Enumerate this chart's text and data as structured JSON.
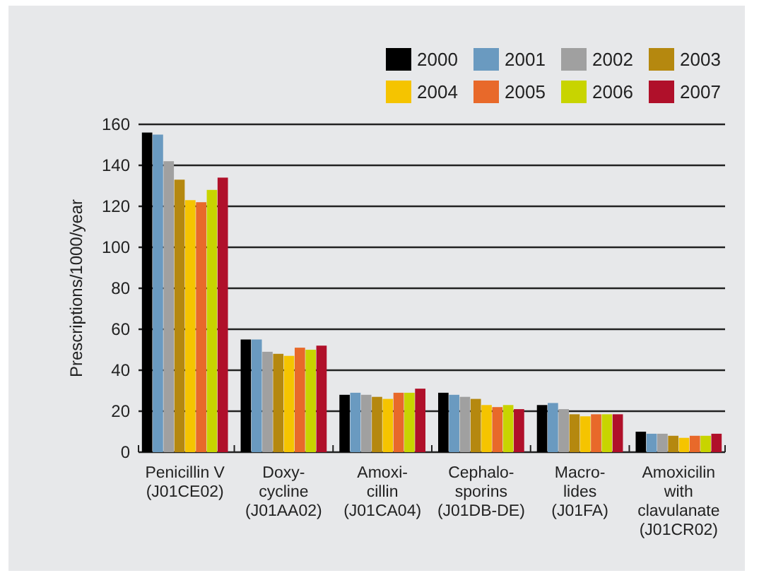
{
  "chart_data": {
    "type": "bar",
    "ylabel": "Prescriptions/1000/year",
    "categories": [
      "Penicillin V\n(J01CE02)",
      "Doxy-\ncycline\n(J01AA02)",
      "Amoxi-\ncillin\n(J01CA04)",
      "Cephalo-\nsporins\n(J01DB-DE)",
      "Macro-\nlides\n(J01FA)",
      "Amoxicilin\nwith\nclavulanate\n(J01CR02)"
    ],
    "series": [
      {
        "name": "2000",
        "color": "#000000",
        "values": [
          156,
          55,
          28,
          29,
          23,
          10
        ]
      },
      {
        "name": "2001",
        "color": "#6a9ac0",
        "values": [
          155,
          55,
          29,
          28,
          24,
          9
        ]
      },
      {
        "name": "2002",
        "color": "#a0a0a0",
        "values": [
          142,
          49,
          28,
          27,
          21,
          9
        ]
      },
      {
        "name": "2003",
        "color": "#b5880f",
        "values": [
          133,
          48,
          27,
          26,
          18.5,
          8
        ]
      },
      {
        "name": "2004",
        "color": "#f5c400",
        "values": [
          123,
          47,
          26,
          23,
          17.5,
          7
        ]
      },
      {
        "name": "2005",
        "color": "#e8692a",
        "values": [
          122,
          51,
          29,
          22,
          18.5,
          8
        ]
      },
      {
        "name": "2006",
        "color": "#c8d400",
        "values": [
          128,
          50,
          29,
          23,
          18.5,
          8
        ]
      },
      {
        "name": "2007",
        "color": "#b0102a",
        "values": [
          134,
          52,
          31,
          21,
          18.5,
          9
        ]
      }
    ],
    "ylim": [
      0,
      160
    ],
    "yticks": [
      0,
      20,
      40,
      60,
      80,
      100,
      120,
      140,
      160
    ],
    "grid": "y",
    "legend": "top right"
  }
}
